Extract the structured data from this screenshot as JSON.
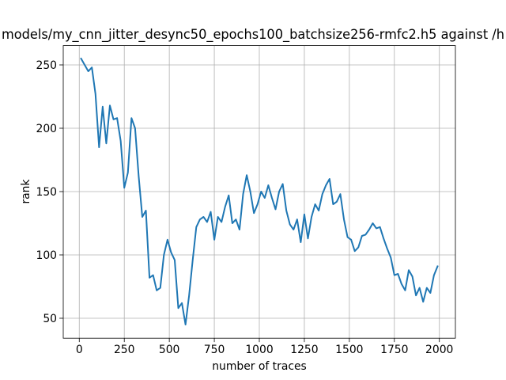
{
  "chart_data": {
    "type": "line",
    "title": "models/my_cnn_jitter_desync50_epochs100_batchsize256-rmfc2.h5 against /h",
    "x_label": "number of traces",
    "y_label": "rank",
    "x": [
      10,
      30,
      50,
      70,
      90,
      110,
      130,
      150,
      170,
      190,
      210,
      230,
      250,
      270,
      290,
      310,
      330,
      350,
      370,
      390,
      410,
      430,
      450,
      470,
      490,
      510,
      530,
      550,
      570,
      590,
      610,
      630,
      650,
      670,
      690,
      710,
      730,
      750,
      770,
      790,
      810,
      830,
      850,
      870,
      890,
      910,
      930,
      950,
      970,
      990,
      1010,
      1030,
      1050,
      1070,
      1090,
      1110,
      1130,
      1150,
      1170,
      1190,
      1210,
      1230,
      1250,
      1270,
      1290,
      1310,
      1330,
      1350,
      1370,
      1390,
      1410,
      1430,
      1450,
      1470,
      1490,
      1510,
      1530,
      1550,
      1570,
      1590,
      1610,
      1630,
      1650,
      1670,
      1690,
      1710,
      1730,
      1750,
      1770,
      1790,
      1810,
      1830,
      1850,
      1870,
      1890,
      1910,
      1930,
      1950,
      1970,
      1990
    ],
    "series": [
      {
        "color": "#1f77b4",
        "values": [
          255,
          250,
          245,
          248,
          227,
          185,
          217,
          188,
          218,
          207,
          208,
          190,
          153,
          165,
          208,
          200,
          162,
          130,
          135,
          82,
          84,
          72,
          74,
          100,
          112,
          102,
          96,
          58,
          62,
          45,
          68,
          96,
          122,
          128,
          130,
          126,
          134,
          112,
          130,
          126,
          138,
          147,
          125,
          128,
          120,
          148,
          163,
          150,
          133,
          140,
          150,
          145,
          155,
          145,
          136,
          150,
          156,
          135,
          124,
          120,
          128,
          110,
          132,
          113,
          130,
          140,
          135,
          148,
          155,
          160,
          140,
          142,
          148,
          128,
          114,
          112,
          103,
          106,
          115,
          116,
          120,
          125,
          121,
          122,
          113,
          105,
          98,
          84,
          85,
          77,
          72,
          88,
          83,
          68,
          74,
          63,
          74,
          70,
          84,
          91
        ]
      }
    ],
    "xlim": [
      -89,
      2089
    ],
    "xticks": [
      0,
      250,
      500,
      750,
      1000,
      1250,
      1500,
      1750,
      2000
    ],
    "ylim": [
      34.25,
      265.25
    ],
    "yticks": [
      50,
      100,
      150,
      200,
      250
    ],
    "grid": true
  }
}
